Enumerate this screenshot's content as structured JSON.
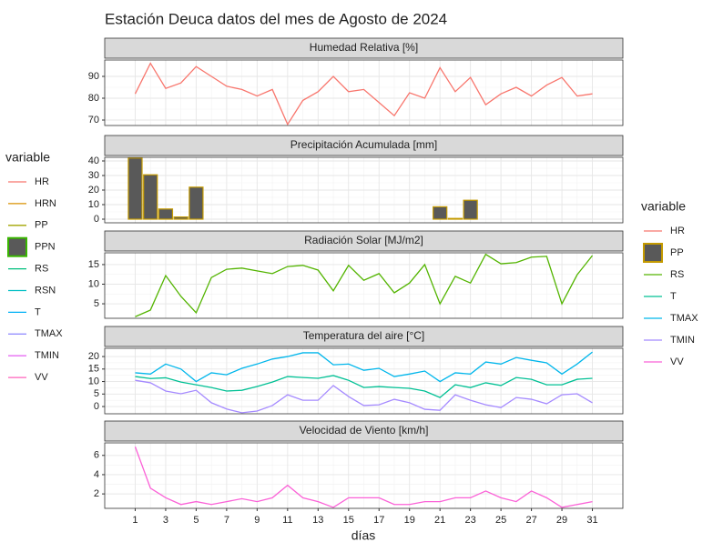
{
  "title": "Estación Deuca datos del mes de Agosto de 2024",
  "x_axis": {
    "label": "días",
    "x": [
      1,
      2,
      3,
      4,
      5,
      6,
      7,
      8,
      9,
      10,
      11,
      12,
      13,
      14,
      15,
      16,
      17,
      18,
      19,
      20,
      21,
      22,
      23,
      24,
      25,
      26,
      27,
      28,
      29,
      30,
      31
    ],
    "xlim": [
      -1,
      33
    ],
    "xticks": [
      1,
      3,
      5,
      7,
      9,
      11,
      13,
      15,
      17,
      19,
      21,
      23,
      25,
      27,
      29,
      31
    ]
  },
  "left_legend": {
    "title": "variable",
    "items": [
      {
        "name": "HR",
        "color": "#F8766D"
      },
      {
        "name": "HRN",
        "color": "#D89000"
      },
      {
        "name": "PP",
        "color": "#A3A500"
      },
      {
        "name": "PPN",
        "color": "#39B600",
        "shape": "box",
        "fill": "#595959"
      },
      {
        "name": "RS",
        "color": "#00BF7D"
      },
      {
        "name": "RSN",
        "color": "#00BFC4"
      },
      {
        "name": "T",
        "color": "#00B0F6"
      },
      {
        "name": "TMAX",
        "color": "#9590FF"
      },
      {
        "name": "TMIN",
        "color": "#E76BF3"
      },
      {
        "name": "VV",
        "color": "#FF62BC"
      }
    ]
  },
  "right_legend": {
    "title": "variable",
    "items": [
      {
        "name": "HR",
        "color": "#F8766D"
      },
      {
        "name": "PP",
        "color": "#C49A00",
        "shape": "box",
        "fill": "#595959"
      },
      {
        "name": "RS",
        "color": "#53B400"
      },
      {
        "name": "T",
        "color": "#00C094"
      },
      {
        "name": "TMAX",
        "color": "#00B6EB"
      },
      {
        "name": "TMIN",
        "color": "#A58AFF"
      },
      {
        "name": "VV",
        "color": "#FB61D7"
      }
    ]
  },
  "chart_data": [
    {
      "type": "line",
      "title": "Humedad Relativa [%]",
      "ylim": [
        67.5,
        97.5
      ],
      "yticks": [
        70,
        80,
        90
      ],
      "grid": true,
      "series": [
        {
          "color": "#F8766D",
          "values": [
            82,
            96,
            84.5,
            87,
            94.5,
            90,
            85.5,
            84,
            81,
            84,
            68,
            79,
            83,
            90,
            83,
            84,
            78,
            72,
            82.5,
            80,
            94,
            83,
            89.5,
            77,
            82,
            85,
            81,
            86,
            89.5,
            81,
            82
          ]
        }
      ]
    },
    {
      "type": "bar",
      "title": "Precipitación Acumulada [mm]",
      "ylim": [
        -2.5,
        42.5
      ],
      "yticks": [
        0,
        10,
        20,
        30,
        40
      ],
      "grid": true,
      "series": [
        {
          "color": "#C49A00",
          "fill": "#595959",
          "values": [
            42,
            30.5,
            7,
            1.5,
            22,
            0,
            0,
            0,
            0,
            0,
            0,
            0,
            0,
            0,
            0,
            0,
            0,
            0,
            0,
            0,
            8.5,
            0.5,
            13,
            0,
            0,
            0,
            0,
            0,
            0,
            0,
            0
          ]
        }
      ]
    },
    {
      "type": "line",
      "title": "Radiación Solar [MJ/m2]",
      "ylim": [
        1.3,
        18
      ],
      "yticks": [
        5,
        10,
        15
      ],
      "grid": true,
      "series": [
        {
          "color": "#53B400",
          "values": [
            1.7,
            3.4,
            12.2,
            6.9,
            2.7,
            11.7,
            13.8,
            14.1,
            13.4,
            12.7,
            14.5,
            14.8,
            13.6,
            8.3,
            14.8,
            11,
            12.7,
            7.8,
            10.3,
            15,
            5,
            12,
            10.3,
            17.6,
            15.2,
            15.5,
            16.9,
            17.1,
            5,
            12.4,
            17.3
          ]
        }
      ]
    },
    {
      "type": "line",
      "title": "Temperatura del aire [°C]",
      "ylim": [
        -2.9,
        23.3
      ],
      "yticks": [
        0,
        5,
        10,
        15,
        20
      ],
      "grid": true,
      "series": [
        {
          "color": "#00B6EB",
          "values": [
            13.5,
            13,
            17,
            15,
            10,
            13.5,
            12.7,
            15.3,
            17,
            19,
            20,
            21.5,
            21.5,
            16.7,
            17,
            14.5,
            15.3,
            12,
            13,
            14.2,
            10,
            13.5,
            13,
            17.8,
            17,
            19.6,
            18.5,
            17.5,
            13,
            17,
            21.8
          ]
        },
        {
          "color": "#00C094",
          "values": [
            12,
            11.2,
            11.5,
            9.8,
            8.7,
            7.6,
            6.2,
            6.5,
            8,
            9.8,
            12,
            11.6,
            11.3,
            12.4,
            10.5,
            7.6,
            8,
            7.6,
            7.3,
            6.2,
            3.6,
            8.7,
            7.6,
            9.5,
            8.4,
            11.6,
            10.9,
            8.7,
            8.7,
            10.9,
            11.3
          ]
        },
        {
          "color": "#A58AFF",
          "values": [
            10.5,
            9.5,
            6.2,
            5.1,
            6.5,
            1.5,
            -1,
            -2.5,
            -1.8,
            0.4,
            4.7,
            2.5,
            2.5,
            8.4,
            4,
            0.4,
            0.7,
            2.9,
            1.5,
            -1.1,
            -1.5,
            4.7,
            2.5,
            0.7,
            -0.4,
            3.6,
            2.9,
            1.1,
            4.7,
            5.1,
            1.5
          ]
        }
      ]
    },
    {
      "type": "line",
      "title": "Velocidad de Viento [km/h]",
      "ylim": [
        0.5,
        7.3
      ],
      "yticks": [
        2,
        4,
        6
      ],
      "grid": true,
      "series": [
        {
          "color": "#FB61D7",
          "values": [
            6.9,
            2.6,
            1.6,
            0.9,
            1.2,
            0.9,
            1.2,
            1.5,
            1.2,
            1.6,
            2.9,
            1.6,
            1.2,
            0.6,
            1.6,
            1.6,
            1.6,
            0.9,
            0.9,
            1.2,
            1.2,
            1.6,
            1.6,
            2.3,
            1.6,
            1.2,
            2.3,
            1.6,
            0.6,
            0.9,
            1.2
          ]
        }
      ]
    }
  ]
}
